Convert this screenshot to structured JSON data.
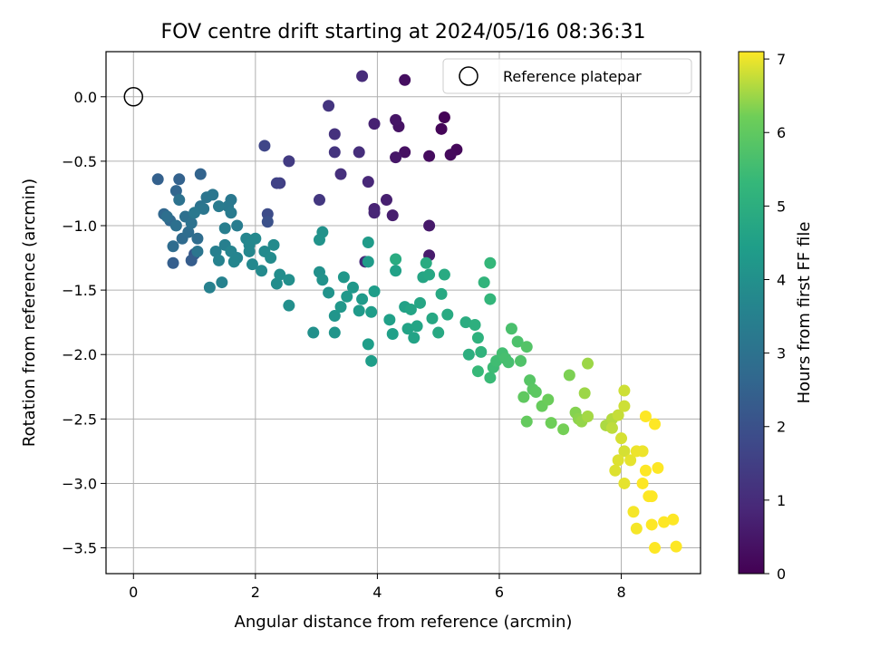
{
  "chart_data": {
    "type": "scatter",
    "title": "FOV centre drift starting at 2024/05/16 08:36:31",
    "xlabel": "Angular distance from reference (arcmin)",
    "ylabel": "Rotation from reference (arcmin)",
    "xlim": [
      -0.45,
      9.3
    ],
    "ylim": [
      -3.7,
      0.35
    ],
    "xticks": [
      0,
      2,
      4,
      6,
      8
    ],
    "yticks": [
      0.0,
      -0.5,
      -1.0,
      -1.5,
      -2.0,
      -2.5,
      -3.0,
      -3.5
    ],
    "xtick_labels": [
      "0",
      "2",
      "4",
      "6",
      "8"
    ],
    "ytick_labels": [
      "0.0",
      "−0.5",
      "−1.0",
      "−1.5",
      "−2.0",
      "−2.5",
      "−3.0",
      "−3.5"
    ],
    "grid": true,
    "legend": {
      "placement": "top-right",
      "entries": [
        "Reference platepar"
      ]
    },
    "reference_point": {
      "name": "Reference platepar",
      "x": 0,
      "y": 0,
      "marker": "open-circle"
    },
    "colorbar": {
      "label": "Hours from first FF file",
      "colormap": "viridis",
      "range": [
        0,
        7.1
      ],
      "ticks": [
        0,
        1,
        2,
        3,
        4,
        5,
        6,
        7
      ],
      "tick_labels": [
        "0",
        "1",
        "2",
        "3",
        "4",
        "5",
        "6",
        "7"
      ]
    },
    "series": [
      {
        "points": [
          [
            5.1,
            -0.16,
            0.05
          ],
          [
            5.05,
            -0.25,
            0.1
          ],
          [
            5.3,
            -0.41,
            0.15
          ],
          [
            5.2,
            -0.45,
            0.2
          ],
          [
            4.85,
            -0.46,
            0.25
          ],
          [
            4.45,
            0.13,
            0.3
          ],
          [
            4.45,
            -0.43,
            0.35
          ],
          [
            4.35,
            -0.23,
            0.4
          ],
          [
            4.3,
            -0.18,
            0.45
          ],
          [
            4.3,
            -0.47,
            0.5
          ],
          [
            4.85,
            -1.0,
            0.55
          ],
          [
            4.85,
            -1.23,
            0.6
          ],
          [
            4.25,
            -0.92,
            0.65
          ],
          [
            4.15,
            -0.8,
            0.7
          ],
          [
            3.95,
            -0.21,
            0.75
          ],
          [
            3.95,
            -0.87,
            0.8
          ],
          [
            3.95,
            -0.9,
            0.85
          ],
          [
            3.85,
            -0.66,
            0.9
          ],
          [
            3.8,
            -1.28,
            0.95
          ],
          [
            3.75,
            0.16,
            1.0
          ],
          [
            3.7,
            -0.43,
            1.05
          ],
          [
            3.4,
            -0.6,
            1.1
          ],
          [
            3.3,
            -0.29,
            1.15
          ],
          [
            3.3,
            -0.43,
            1.2
          ],
          [
            3.2,
            -0.07,
            1.25
          ],
          [
            3.05,
            -0.8,
            1.3
          ],
          [
            2.55,
            -0.5,
            1.4
          ],
          [
            2.4,
            -0.67,
            1.5
          ],
          [
            2.35,
            -0.67,
            1.6
          ],
          [
            2.15,
            -0.38,
            1.7
          ],
          [
            2.2,
            -0.91,
            1.85
          ],
          [
            2.2,
            -0.97,
            2.0
          ],
          [
            1.0,
            -1.22,
            2.2
          ],
          [
            0.95,
            -1.27,
            2.35
          ],
          [
            0.65,
            -1.29,
            2.4
          ],
          [
            0.4,
            -0.64,
            2.45
          ],
          [
            0.75,
            -0.64,
            2.5
          ],
          [
            1.1,
            -0.6,
            2.55
          ],
          [
            0.7,
            -0.73,
            2.6
          ],
          [
            0.5,
            -0.91,
            2.65
          ],
          [
            0.6,
            -0.96,
            2.7
          ],
          [
            0.8,
            -1.1,
            2.75
          ],
          [
            0.65,
            -1.16,
            2.8
          ],
          [
            0.9,
            -1.05,
            2.85
          ],
          [
            1.05,
            -1.1,
            2.85
          ],
          [
            0.55,
            -0.93,
            2.9
          ],
          [
            0.7,
            -1.0,
            2.95
          ],
          [
            0.85,
            -0.93,
            2.95
          ],
          [
            0.75,
            -0.8,
            3.0
          ],
          [
            0.95,
            -0.98,
            3.0
          ],
          [
            1.1,
            -0.85,
            3.05
          ],
          [
            1.2,
            -0.78,
            3.1
          ],
          [
            1.05,
            -1.2,
            3.1
          ],
          [
            1.3,
            -0.76,
            3.15
          ],
          [
            1.15,
            -0.87,
            3.15
          ],
          [
            1.0,
            -0.9,
            3.2
          ],
          [
            1.6,
            -0.8,
            3.2
          ],
          [
            1.55,
            -0.85,
            3.25
          ],
          [
            1.6,
            -0.9,
            3.3
          ],
          [
            1.4,
            -0.85,
            3.3
          ],
          [
            1.7,
            -1.0,
            3.35
          ],
          [
            1.5,
            -1.02,
            3.4
          ],
          [
            1.5,
            -1.15,
            3.45
          ],
          [
            1.35,
            -1.2,
            3.45
          ],
          [
            1.25,
            -1.48,
            3.5
          ],
          [
            1.45,
            -1.44,
            3.55
          ],
          [
            1.4,
            -1.27,
            3.55
          ],
          [
            1.6,
            -1.2,
            3.6
          ],
          [
            1.7,
            -1.25,
            3.6
          ],
          [
            1.65,
            -1.28,
            3.65
          ],
          [
            1.85,
            -1.1,
            3.65
          ],
          [
            1.9,
            -1.15,
            3.7
          ],
          [
            1.9,
            -1.2,
            3.7
          ],
          [
            2.0,
            -1.1,
            3.75
          ],
          [
            1.95,
            -1.3,
            3.75
          ],
          [
            2.1,
            -1.35,
            3.8
          ],
          [
            2.15,
            -1.2,
            3.8
          ],
          [
            2.25,
            -1.25,
            3.85
          ],
          [
            2.3,
            -1.15,
            3.85
          ],
          [
            2.4,
            -1.38,
            3.9
          ],
          [
            2.35,
            -1.45,
            3.9
          ],
          [
            2.55,
            -1.42,
            3.95
          ],
          [
            2.55,
            -1.62,
            3.95
          ],
          [
            2.95,
            -1.83,
            4.0
          ],
          [
            3.05,
            -1.36,
            4.0
          ],
          [
            3.1,
            -1.42,
            4.05
          ],
          [
            3.1,
            -1.05,
            4.05
          ],
          [
            3.05,
            -1.11,
            4.1
          ],
          [
            3.2,
            -1.52,
            4.1
          ],
          [
            3.3,
            -1.7,
            4.15
          ],
          [
            3.3,
            -1.83,
            4.15
          ],
          [
            3.4,
            -1.63,
            4.2
          ],
          [
            3.45,
            -1.4,
            4.2
          ],
          [
            3.5,
            -1.55,
            4.25
          ],
          [
            3.6,
            -1.48,
            4.25
          ],
          [
            3.7,
            -1.66,
            4.3
          ],
          [
            3.75,
            -1.57,
            4.3
          ],
          [
            3.85,
            -1.13,
            4.35
          ],
          [
            3.85,
            -1.28,
            4.35
          ],
          [
            3.95,
            -1.51,
            4.4
          ],
          [
            3.9,
            -1.67,
            4.4
          ],
          [
            3.85,
            -1.92,
            4.45
          ],
          [
            3.9,
            -2.05,
            4.45
          ],
          [
            4.2,
            -1.73,
            4.5
          ],
          [
            4.25,
            -1.84,
            4.5
          ],
          [
            4.3,
            -1.35,
            4.55
          ],
          [
            4.45,
            -1.63,
            4.55
          ],
          [
            4.5,
            -1.8,
            4.6
          ],
          [
            4.6,
            -1.87,
            4.6
          ],
          [
            4.55,
            -1.65,
            4.65
          ],
          [
            4.65,
            -1.78,
            4.65
          ],
          [
            4.7,
            -1.6,
            4.7
          ],
          [
            4.75,
            -1.4,
            4.7
          ],
          [
            4.85,
            -1.38,
            4.75
          ],
          [
            4.9,
            -1.72,
            4.75
          ],
          [
            5.0,
            -1.83,
            4.8
          ],
          [
            5.05,
            -1.53,
            4.8
          ],
          [
            5.1,
            -1.38,
            4.85
          ],
          [
            5.15,
            -1.69,
            4.85
          ],
          [
            4.3,
            -1.26,
            4.9
          ],
          [
            4.8,
            -1.29,
            4.9
          ],
          [
            5.45,
            -1.75,
            4.95
          ],
          [
            5.5,
            -2.0,
            5.0
          ],
          [
            5.6,
            -1.77,
            5.05
          ],
          [
            5.65,
            -1.87,
            5.1
          ],
          [
            5.7,
            -1.98,
            5.15
          ],
          [
            5.75,
            -1.44,
            5.2
          ],
          [
            5.85,
            -1.57,
            5.25
          ],
          [
            5.85,
            -1.29,
            5.3
          ],
          [
            5.65,
            -2.13,
            5.35
          ],
          [
            5.85,
            -2.18,
            5.4
          ],
          [
            5.9,
            -2.1,
            5.45
          ],
          [
            5.95,
            -2.05,
            5.5
          ],
          [
            6.05,
            -1.99,
            5.55
          ],
          [
            6.1,
            -2.03,
            5.6
          ],
          [
            6.15,
            -2.06,
            5.6
          ],
          [
            6.2,
            -1.8,
            5.65
          ],
          [
            6.3,
            -1.9,
            5.7
          ],
          [
            6.35,
            -2.05,
            5.75
          ],
          [
            6.45,
            -1.94,
            5.8
          ],
          [
            6.5,
            -2.2,
            5.85
          ],
          [
            6.55,
            -2.27,
            5.9
          ],
          [
            6.6,
            -2.29,
            5.95
          ],
          [
            6.4,
            -2.33,
            6.0
          ],
          [
            6.45,
            -2.52,
            6.05
          ],
          [
            6.7,
            -2.4,
            6.1
          ],
          [
            6.8,
            -2.35,
            6.15
          ],
          [
            6.85,
            -2.53,
            6.2
          ],
          [
            7.05,
            -2.58,
            6.25
          ],
          [
            7.15,
            -2.16,
            6.3
          ],
          [
            7.25,
            -2.45,
            6.35
          ],
          [
            7.3,
            -2.5,
            6.4
          ],
          [
            7.35,
            -2.52,
            6.45
          ],
          [
            7.4,
            -2.3,
            6.5
          ],
          [
            7.45,
            -2.07,
            6.5
          ],
          [
            7.45,
            -2.48,
            6.55
          ],
          [
            7.75,
            -2.55,
            6.6
          ],
          [
            7.85,
            -2.5,
            6.65
          ],
          [
            7.85,
            -2.57,
            6.7
          ],
          [
            7.95,
            -2.47,
            6.75
          ],
          [
            8.05,
            -2.28,
            6.8
          ],
          [
            8.05,
            -2.4,
            6.8
          ],
          [
            8.0,
            -2.65,
            6.85
          ],
          [
            8.05,
            -2.75,
            6.85
          ],
          [
            7.95,
            -2.82,
            6.9
          ],
          [
            7.9,
            -2.9,
            6.9
          ],
          [
            8.05,
            -3.0,
            6.95
          ],
          [
            8.15,
            -2.82,
            6.95
          ],
          [
            8.25,
            -2.75,
            7.0
          ],
          [
            8.35,
            -2.75,
            7.0
          ],
          [
            8.2,
            -3.22,
            7.05
          ],
          [
            8.25,
            -3.35,
            7.05
          ],
          [
            8.35,
            -3.0,
            7.1
          ],
          [
            8.45,
            -3.1,
            7.1
          ],
          [
            8.5,
            -3.1,
            7.1
          ],
          [
            8.6,
            -2.88,
            7.1
          ],
          [
            8.4,
            -2.9,
            7.1
          ],
          [
            8.55,
            -2.54,
            7.1
          ],
          [
            8.4,
            -2.48,
            7.1
          ],
          [
            8.5,
            -3.32,
            7.1
          ],
          [
            8.7,
            -3.3,
            7.1
          ],
          [
            8.85,
            -3.28,
            7.1
          ],
          [
            8.55,
            -3.5,
            7.1
          ],
          [
            8.9,
            -3.49,
            7.1
          ]
        ]
      }
    ]
  }
}
